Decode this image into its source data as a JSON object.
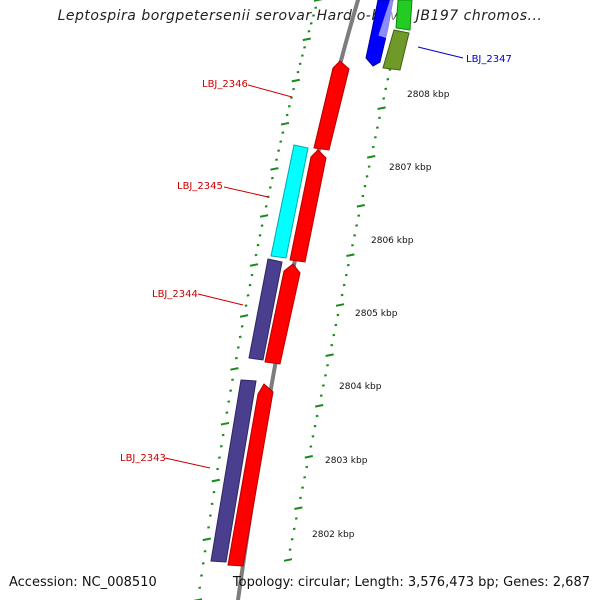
{
  "title": "Leptospira borgpetersenii serovar Hardjo-bovis JB197 chromos...",
  "footer": {
    "accession": "Accession: NC_008510",
    "summary": "Topology: circular; Length: 3,576,473 bp; Genes: 2,687"
  },
  "colors": {
    "backbone": "#8c8c8c",
    "tick": "#1a8a1a",
    "label_red": "#cc0000",
    "label_blue": "#0000cc",
    "gene_red": "#ff0000",
    "gene_cyan": "#00ffff",
    "gene_purple": "#4a3f8f",
    "gene_blue": "#0000ff",
    "gene_olive": "#6f9a2a",
    "gene_green": "#22cc22"
  },
  "ruler": [
    {
      "label": "2802 kbp"
    },
    {
      "label": "2803 kbp"
    },
    {
      "label": "2804 kbp"
    },
    {
      "label": "2805 kbp"
    },
    {
      "label": "2806 kbp"
    },
    {
      "label": "2807 kbp"
    },
    {
      "label": "2808 kbp"
    }
  ],
  "gene_labels": [
    {
      "name": "LBJ_2346",
      "color": "red"
    },
    {
      "name": "LBJ_2345",
      "color": "red"
    },
    {
      "name": "LBJ_2344",
      "color": "red"
    },
    {
      "name": "LBJ_2343",
      "color": "red"
    },
    {
      "name": "LBJ_2347",
      "color": "blue"
    }
  ]
}
